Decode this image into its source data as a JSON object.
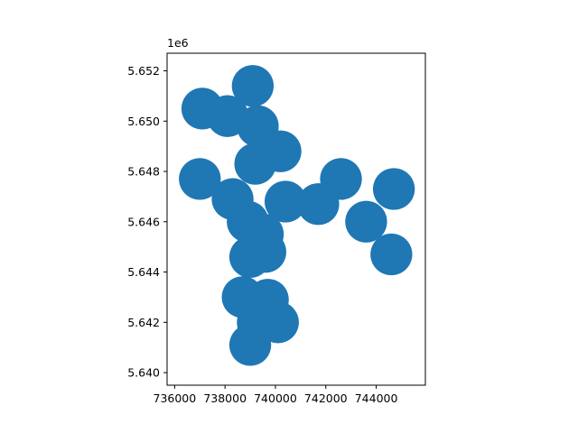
{
  "chart_data": {
    "type": "scatter",
    "title": "",
    "xlabel": "",
    "ylabel": "",
    "y_offset_label": "1e6",
    "xlim": [
      735700,
      745950
    ],
    "ylim": [
      5639500,
      5652700
    ],
    "x_ticks": [
      736000,
      738000,
      740000,
      742000,
      744000
    ],
    "x_tick_labels": [
      "736000",
      "738000",
      "740000",
      "742000",
      "744000"
    ],
    "y_ticks": [
      5640000,
      5642000,
      5644000,
      5646000,
      5648000,
      5650000,
      5652000
    ],
    "y_tick_labels": [
      "5.640",
      "5.642",
      "5.644",
      "5.646",
      "5.648",
      "5.650",
      "5.652"
    ],
    "grid": false,
    "legend": "none",
    "color": "#1f77b4",
    "buffer_radius": 830,
    "series": [
      {
        "x": [
          739100,
          737100,
          738100,
          739300,
          737000,
          738300,
          740200,
          741700,
          742600,
          743600,
          744700,
          744600,
          738900,
          739500,
          739000,
          739600,
          739700,
          739300,
          740100,
          738700,
          739000,
          740400,
          739200
        ],
        "y": [
          5651400,
          5650500,
          5650200,
          5649800,
          5647700,
          5646900,
          5648800,
          5646700,
          5647700,
          5646000,
          5647300,
          5644700,
          5646000,
          5645500,
          5644600,
          5644800,
          5642900,
          5642000,
          5642000,
          5643000,
          5641100,
          5646800,
          5648300
        ]
      }
    ]
  }
}
